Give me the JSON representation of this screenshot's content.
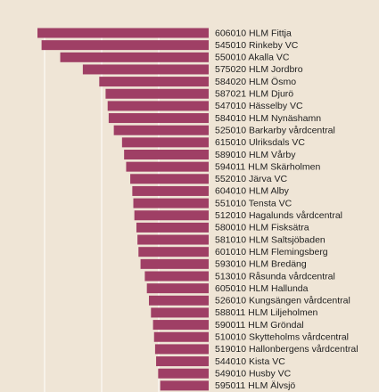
{
  "chart_data": {
    "type": "bar",
    "orientation": "horizontal",
    "bar_color": "#9f3f65",
    "background_color": "#efe5d6",
    "grid": true,
    "categories": [
      "606010 HLM Fittja",
      "545010 Rinkeby VC",
      "550010 Akalla VC",
      "575020 HLM Jordbro",
      "584020 HLM Ösmo",
      "587021 HLM Djurö",
      "547010 Hässelby VC",
      "584010 HLM Nynäshamn",
      "525010 Barkarby vårdcentral",
      "615010 Ulriksdals VC",
      "589010 HLM Vårby",
      "594011 HLM Skärholmen",
      "552010 Järva VC",
      "604010 HLM Alby",
      "551010 Tensta VC",
      "512010 Hagalunds vårdcentral",
      "580010 HLM Fisksätra",
      "581010 HLM Saltsjöbaden",
      "601010 HLM Flemingsberg",
      "593010 HLM Bredäng",
      "513010 Råsunda vårdcentral",
      "605010 HLM Hallunda",
      "526010 Kungsängen vårdcentral",
      "588011 HLM Liljeholmen",
      "590011 HLM Gröndal",
      "510010 Skytteholms vårdcentral",
      "519010 Hallonbergens vårdcentral",
      "544010 Kista VC",
      "549010 Husby VC",
      "595011 HLM Älvsjö"
    ],
    "values": [
      1.0,
      0.976,
      0.867,
      0.735,
      0.639,
      0.602,
      0.59,
      0.584,
      0.554,
      0.506,
      0.494,
      0.482,
      0.458,
      0.446,
      0.44,
      0.434,
      0.422,
      0.416,
      0.41,
      0.398,
      0.373,
      0.361,
      0.349,
      0.337,
      0.325,
      0.319,
      0.313,
      0.307,
      0.295,
      0.283
    ]
  }
}
